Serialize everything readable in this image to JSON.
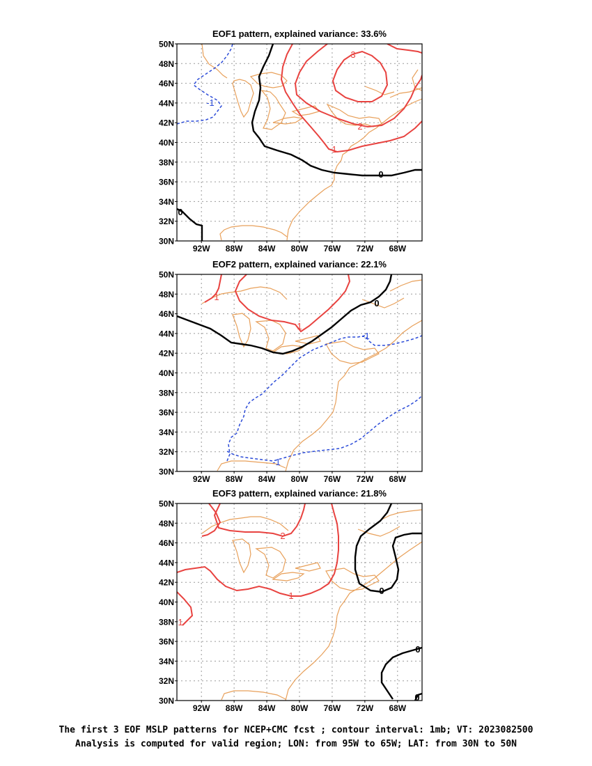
{
  "panels": [
    {
      "title": "EOF1 pattern, explained variance: 33.6%",
      "contour_labels": [
        {
          "text": "-1",
          "kind": "negative"
        },
        {
          "text": "0",
          "kind": "zero"
        },
        {
          "text": "1",
          "kind": "positive"
        },
        {
          "text": "2",
          "kind": "positive"
        },
        {
          "text": "3",
          "kind": "positive"
        },
        {
          "text": "0",
          "kind": "zero"
        }
      ]
    },
    {
      "title": "EOF2 pattern, explained variance: 22.1%",
      "contour_labels": [
        {
          "text": "1",
          "kind": "positive"
        },
        {
          "text": "1",
          "kind": "positive"
        },
        {
          "text": "0",
          "kind": "zero"
        },
        {
          "text": "-1",
          "kind": "negative"
        },
        {
          "text": "-1",
          "kind": "negative"
        }
      ]
    },
    {
      "title": "EOF3 pattern, explained variance: 21.8%",
      "contour_labels": [
        {
          "text": "2",
          "kind": "positive"
        },
        {
          "text": "1",
          "kind": "positive"
        },
        {
          "text": "1",
          "kind": "positive"
        },
        {
          "text": "0",
          "kind": "zero"
        },
        {
          "text": "0",
          "kind": "zero"
        },
        {
          "text": "0",
          "kind": "zero"
        }
      ]
    }
  ],
  "axes": {
    "lat_ticks": [
      "50N",
      "48N",
      "46N",
      "44N",
      "42N",
      "40N",
      "38N",
      "36N",
      "34N",
      "32N",
      "30N"
    ],
    "lon_ticks": [
      "92W",
      "88W",
      "84W",
      "80W",
      "76W",
      "72W",
      "68W"
    ]
  },
  "caption": {
    "line1": "The first 3 EOF MSLP patterns for NCEP+CMC fcst ; contour interval: 1mb; VT: 2023082500",
    "line2": "Analysis is computed for valid region; LON: from 95W to 65W; LAT: from 30N to 50N"
  },
  "colors": {
    "positive_contour": "#e8423f",
    "negative_contour": "#2b4bd8",
    "zero_contour": "#000000",
    "coastline": "#e8a05a",
    "grid": "#9a9a9a"
  }
}
